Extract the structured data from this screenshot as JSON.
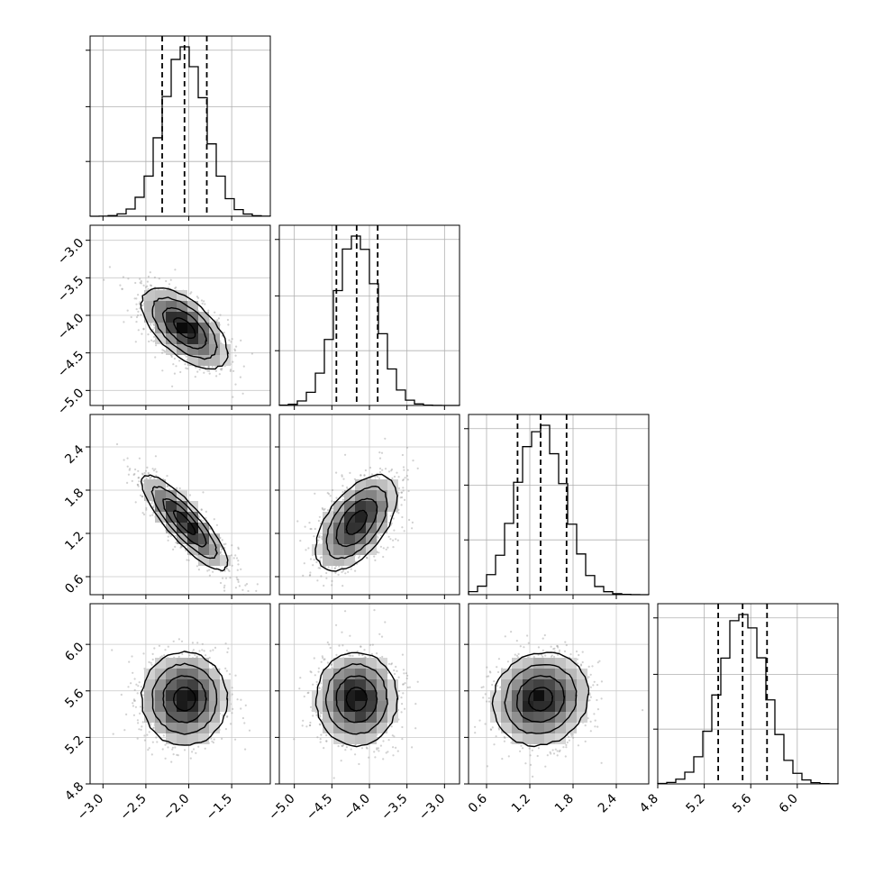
{
  "chart_data": {
    "type": "corner",
    "parameters": 4,
    "quantile_lines": [
      0.16,
      0.5,
      0.84
    ],
    "grid": true,
    "ranges": [
      [
        -3.15,
        -1.05
      ],
      [
        -5.2,
        -2.8
      ],
      [
        0.35,
        2.85
      ],
      [
        4.8,
        6.35
      ]
    ],
    "ticks": [
      {
        "values": [
          -3.0,
          -2.5,
          -2.0,
          -1.5
        ],
        "labels": [
          "−3.0",
          "−2.5",
          "−2.0",
          "−1.5"
        ]
      },
      {
        "values": [
          -5.0,
          -4.5,
          -4.0,
          -3.5,
          -3.0
        ],
        "labels": [
          "−5.0",
          "−4.5",
          "−4.0",
          "−3.5",
          "−3.0"
        ]
      },
      {
        "values": [
          0.6,
          1.2,
          1.8,
          2.4
        ],
        "labels": [
          "0.6",
          "1.2",
          "1.8",
          "2.4"
        ]
      },
      {
        "values": [
          4.8,
          5.2,
          5.6,
          6.0
        ],
        "labels": [
          "4.8",
          "5.2",
          "5.6",
          "6.0"
        ]
      }
    ],
    "marginals": [
      {
        "mean": -2.05,
        "sd": 0.25,
        "quantiles": [
          -2.31,
          -2.05,
          -1.79
        ]
      },
      {
        "mean": -4.17,
        "sd": 0.27,
        "quantiles": [
          -4.44,
          -4.17,
          -3.89
        ]
      },
      {
        "mean": 1.35,
        "sd": 0.33,
        "quantiles": [
          1.03,
          1.35,
          1.71
        ]
      },
      {
        "mean": 5.53,
        "sd": 0.2,
        "quantiles": [
          5.32,
          5.53,
          5.74
        ]
      }
    ],
    "correlations": [
      {
        "x": 0,
        "y": 1,
        "rho": -0.6
      },
      {
        "x": 0,
        "y": 2,
        "rho": -0.85
      },
      {
        "x": 1,
        "y": 2,
        "rho": 0.55
      },
      {
        "x": 0,
        "y": 3,
        "rho": 0.0
      },
      {
        "x": 1,
        "y": 3,
        "rho": 0.0
      },
      {
        "x": 2,
        "y": 3,
        "rho": 0.1
      }
    ],
    "contour_levels_sigma": [
      0.5,
      1.0,
      1.5,
      2.0
    ]
  }
}
